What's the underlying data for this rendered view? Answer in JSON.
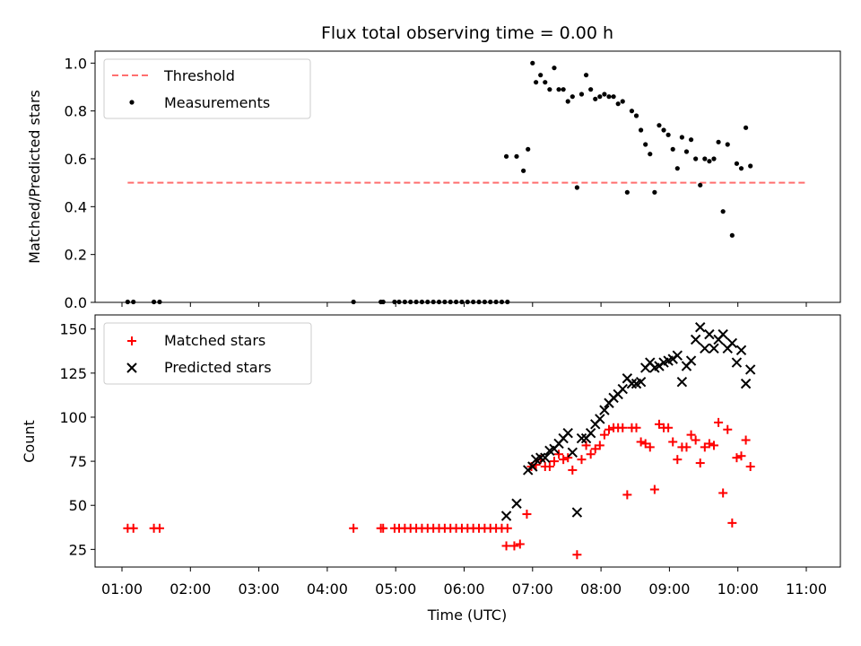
{
  "chart_data": [
    {
      "type": "scatter",
      "title": "Flux total observing time = 0.00 h",
      "xlabel": "",
      "ylabel": "Matched/Predicted stars",
      "ylim": [
        0,
        1.05
      ],
      "yticks": [
        "0.0",
        "0.2",
        "0.4",
        "0.6",
        "0.8",
        "1.0"
      ],
      "legend": {
        "position": "top-left",
        "threshold_label": "Threshold",
        "measurements_label": "Measurements"
      },
      "threshold": {
        "value": 0.5,
        "x_start": "01:05",
        "x_end": "11:00",
        "color": "#ff6f6f"
      },
      "series": [
        {
          "name": "Measurements",
          "color": "#000000",
          "marker": "dot",
          "points": [
            [
              "01:05",
              0.0
            ],
            [
              "01:10",
              0.0
            ],
            [
              "01:28",
              0.0
            ],
            [
              "01:33",
              0.0
            ],
            [
              "04:23",
              0.0
            ],
            [
              "04:47",
              0.0
            ],
            [
              "04:49",
              0.0
            ],
            [
              "04:59",
              0.0
            ],
            [
              "05:03",
              0.0
            ],
            [
              "05:08",
              0.0
            ],
            [
              "05:13",
              0.0
            ],
            [
              "05:18",
              0.0
            ],
            [
              "05:23",
              0.0
            ],
            [
              "05:28",
              0.0
            ],
            [
              "05:33",
              0.0
            ],
            [
              "05:38",
              0.0
            ],
            [
              "05:43",
              0.0
            ],
            [
              "05:48",
              0.0
            ],
            [
              "05:53",
              0.0
            ],
            [
              "05:58",
              0.0
            ],
            [
              "06:03",
              0.0
            ],
            [
              "06:08",
              0.0
            ],
            [
              "06:13",
              0.0
            ],
            [
              "06:18",
              0.0
            ],
            [
              "06:23",
              0.0
            ],
            [
              "06:28",
              0.0
            ],
            [
              "06:33",
              0.0
            ],
            [
              "06:38",
              0.0
            ],
            [
              "06:37",
              0.61
            ],
            [
              "06:46",
              0.61
            ],
            [
              "06:52",
              0.55
            ],
            [
              "06:56",
              0.64
            ],
            [
              "07:00",
              1.0
            ],
            [
              "07:03",
              0.92
            ],
            [
              "07:07",
              0.95
            ],
            [
              "07:11",
              0.92
            ],
            [
              "07:15",
              0.89
            ],
            [
              "07:19",
              0.98
            ],
            [
              "07:23",
              0.89
            ],
            [
              "07:27",
              0.89
            ],
            [
              "07:31",
              0.84
            ],
            [
              "07:35",
              0.86
            ],
            [
              "07:39",
              0.48
            ],
            [
              "07:43",
              0.87
            ],
            [
              "07:47",
              0.95
            ],
            [
              "07:51",
              0.89
            ],
            [
              "07:55",
              0.85
            ],
            [
              "07:59",
              0.86
            ],
            [
              "08:03",
              0.87
            ],
            [
              "08:07",
              0.86
            ],
            [
              "08:11",
              0.86
            ],
            [
              "08:15",
              0.83
            ],
            [
              "08:19",
              0.84
            ],
            [
              "08:23",
              0.46
            ],
            [
              "08:27",
              0.8
            ],
            [
              "08:31",
              0.78
            ],
            [
              "08:35",
              0.72
            ],
            [
              "08:39",
              0.66
            ],
            [
              "08:43",
              0.62
            ],
            [
              "08:47",
              0.46
            ],
            [
              "08:51",
              0.74
            ],
            [
              "08:55",
              0.72
            ],
            [
              "08:59",
              0.7
            ],
            [
              "09:03",
              0.64
            ],
            [
              "09:07",
              0.56
            ],
            [
              "09:11",
              0.69
            ],
            [
              "09:15",
              0.63
            ],
            [
              "09:19",
              0.68
            ],
            [
              "09:23",
              0.6
            ],
            [
              "09:27",
              0.49
            ],
            [
              "09:31",
              0.6
            ],
            [
              "09:35",
              0.59
            ],
            [
              "09:39",
              0.6
            ],
            [
              "09:43",
              0.67
            ],
            [
              "09:47",
              0.38
            ],
            [
              "09:51",
              0.66
            ],
            [
              "09:55",
              0.28
            ],
            [
              "09:59",
              0.58
            ],
            [
              "10:03",
              0.56
            ],
            [
              "10:07",
              0.73
            ],
            [
              "10:11",
              0.57
            ]
          ]
        }
      ]
    },
    {
      "type": "scatter",
      "title": "",
      "xlabel": "Time (UTC)",
      "ylabel": "Count",
      "ylim": [
        15,
        158
      ],
      "yticks": [
        "25",
        "50",
        "75",
        "100",
        "125",
        "150"
      ],
      "xticks": [
        "01:00",
        "02:00",
        "03:00",
        "04:00",
        "05:00",
        "06:00",
        "07:00",
        "08:00",
        "09:00",
        "10:00",
        "11:00"
      ],
      "legend": {
        "position": "top-left"
      },
      "series": [
        {
          "name": "Matched stars",
          "color": "#ff0000",
          "marker": "plus",
          "points": [
            [
              "01:05",
              37
            ],
            [
              "01:10",
              37
            ],
            [
              "01:28",
              37
            ],
            [
              "01:33",
              37
            ],
            [
              "04:23",
              37
            ],
            [
              "04:47",
              37
            ],
            [
              "04:49",
              37
            ],
            [
              "04:59",
              37
            ],
            [
              "05:03",
              37
            ],
            [
              "05:08",
              37
            ],
            [
              "05:13",
              37
            ],
            [
              "05:18",
              37
            ],
            [
              "05:23",
              37
            ],
            [
              "05:28",
              37
            ],
            [
              "05:33",
              37
            ],
            [
              "05:38",
              37
            ],
            [
              "05:43",
              37
            ],
            [
              "05:48",
              37
            ],
            [
              "05:53",
              37
            ],
            [
              "05:58",
              37
            ],
            [
              "06:03",
              37
            ],
            [
              "06:08",
              37
            ],
            [
              "06:13",
              37
            ],
            [
              "06:18",
              37
            ],
            [
              "06:23",
              37
            ],
            [
              "06:28",
              37
            ],
            [
              "06:33",
              37
            ],
            [
              "06:38",
              37
            ],
            [
              "06:37",
              27
            ],
            [
              "06:44",
              27
            ],
            [
              "06:49",
              28
            ],
            [
              "06:55",
              45
            ],
            [
              "06:59",
              72
            ],
            [
              "07:03",
              73
            ],
            [
              "07:07",
              76
            ],
            [
              "07:11",
              72
            ],
            [
              "07:15",
              72
            ],
            [
              "07:19",
              75
            ],
            [
              "07:23",
              79
            ],
            [
              "07:27",
              76
            ],
            [
              "07:31",
              77
            ],
            [
              "07:35",
              70
            ],
            [
              "07:39",
              22
            ],
            [
              "07:43",
              76
            ],
            [
              "07:47",
              84
            ],
            [
              "07:51",
              79
            ],
            [
              "07:55",
              82
            ],
            [
              "07:59",
              84
            ],
            [
              "08:03",
              90
            ],
            [
              "08:07",
              93
            ],
            [
              "08:11",
              94
            ],
            [
              "08:15",
              94
            ],
            [
              "08:19",
              94
            ],
            [
              "08:23",
              56
            ],
            [
              "08:27",
              94
            ],
            [
              "08:31",
              94
            ],
            [
              "08:35",
              86
            ],
            [
              "08:39",
              85
            ],
            [
              "08:43",
              83
            ],
            [
              "08:47",
              59
            ],
            [
              "08:51",
              96
            ],
            [
              "08:55",
              94
            ],
            [
              "08:59",
              94
            ],
            [
              "09:03",
              86
            ],
            [
              "09:07",
              76
            ],
            [
              "09:11",
              83
            ],
            [
              "09:15",
              83
            ],
            [
              "09:19",
              90
            ],
            [
              "09:23",
              87
            ],
            [
              "09:27",
              74
            ],
            [
              "09:31",
              83
            ],
            [
              "09:35",
              85
            ],
            [
              "09:39",
              84
            ],
            [
              "09:43",
              97
            ],
            [
              "09:47",
              57
            ],
            [
              "09:51",
              93
            ],
            [
              "09:55",
              40
            ],
            [
              "09:59",
              77
            ],
            [
              "10:03",
              78
            ],
            [
              "10:07",
              87
            ],
            [
              "10:11",
              72
            ]
          ]
        },
        {
          "name": "Predicted stars",
          "color": "#000000",
          "marker": "x",
          "points": [
            [
              "06:37",
              44
            ],
            [
              "06:46",
              51
            ],
            [
              "06:56",
              70
            ],
            [
              "07:00",
              72
            ],
            [
              "07:03",
              76
            ],
            [
              "07:07",
              77
            ],
            [
              "07:11",
              77
            ],
            [
              "07:15",
              81
            ],
            [
              "07:19",
              82
            ],
            [
              "07:23",
              85
            ],
            [
              "07:27",
              88
            ],
            [
              "07:31",
              91
            ],
            [
              "07:35",
              80
            ],
            [
              "07:39",
              46
            ],
            [
              "07:43",
              88
            ],
            [
              "07:47",
              88
            ],
            [
              "07:51",
              91
            ],
            [
              "07:55",
              96
            ],
            [
              "07:59",
              99
            ],
            [
              "08:03",
              104
            ],
            [
              "08:07",
              108
            ],
            [
              "08:11",
              111
            ],
            [
              "08:15",
              113
            ],
            [
              "08:19",
              116
            ],
            [
              "08:23",
              122
            ],
            [
              "08:27",
              119
            ],
            [
              "08:31",
              119
            ],
            [
              "08:35",
              120
            ],
            [
              "08:39",
              128
            ],
            [
              "08:43",
              131
            ],
            [
              "08:47",
              128
            ],
            [
              "08:51",
              129
            ],
            [
              "08:55",
              131
            ],
            [
              "08:59",
              132
            ],
            [
              "09:03",
              133
            ],
            [
              "09:07",
              135
            ],
            [
              "09:11",
              120
            ],
            [
              "09:15",
              129
            ],
            [
              "09:19",
              132
            ],
            [
              "09:23",
              144
            ],
            [
              "09:27",
              151
            ],
            [
              "09:31",
              139
            ],
            [
              "09:35",
              147
            ],
            [
              "09:39",
              139
            ],
            [
              "09:43",
              144
            ],
            [
              "09:47",
              147
            ],
            [
              "09:51",
              139
            ],
            [
              "09:55",
              142
            ],
            [
              "09:59",
              131
            ],
            [
              "10:03",
              138
            ],
            [
              "10:07",
              119
            ],
            [
              "10:11",
              127
            ]
          ]
        }
      ]
    }
  ]
}
